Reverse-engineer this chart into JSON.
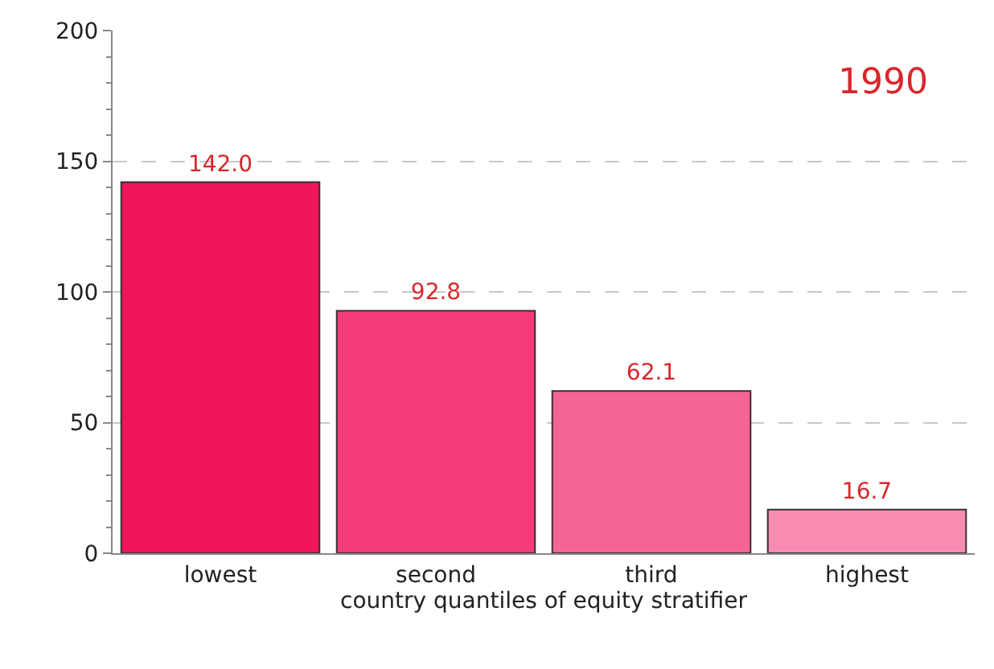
{
  "chart_data": {
    "type": "bar",
    "xlabel": "country quantiles of equity stratifier",
    "categories": [
      "lowest",
      "second",
      "third",
      "highest"
    ],
    "values": [
      142.0,
      92.8,
      62.1,
      16.7
    ],
    "colors": [
      "#f0145a",
      "#f43c7a",
      "#f56496",
      "#f78bb2"
    ],
    "ylim": [
      0,
      200
    ],
    "yticks": [
      0,
      50,
      100,
      150,
      200
    ],
    "grid": "y",
    "value_labels": [
      "142.0",
      "92.8",
      "62.1",
      "16.7"
    ],
    "annotations": [
      "1990"
    ]
  }
}
